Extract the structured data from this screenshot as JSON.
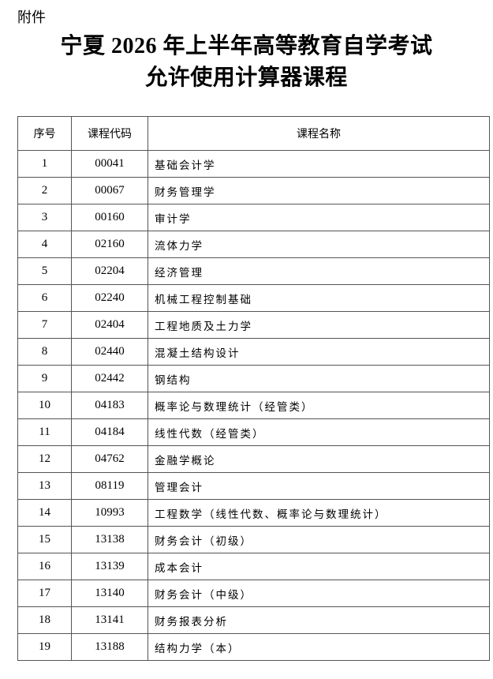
{
  "attachment_label": "附件",
  "title_line1": "宁夏 2026 年上半年高等教育自学考试",
  "title_line2": "允许使用计算器课程",
  "table": {
    "headers": [
      "序号",
      "课程代码",
      "课程名称"
    ],
    "rows": [
      [
        "1",
        "00041",
        "基础会计学"
      ],
      [
        "2",
        "00067",
        "财务管理学"
      ],
      [
        "3",
        "00160",
        "审计学"
      ],
      [
        "4",
        "02160",
        "流体力学"
      ],
      [
        "5",
        "02204",
        "经济管理"
      ],
      [
        "6",
        "02240",
        "机械工程控制基础"
      ],
      [
        "7",
        "02404",
        "工程地质及土力学"
      ],
      [
        "8",
        "02440",
        "混凝土结构设计"
      ],
      [
        "9",
        "02442",
        "钢结构"
      ],
      [
        "10",
        "04183",
        "概率论与数理统计（经管类）"
      ],
      [
        "11",
        "04184",
        "线性代数（经管类）"
      ],
      [
        "12",
        "04762",
        "金融学概论"
      ],
      [
        "13",
        "08119",
        "管理会计"
      ],
      [
        "14",
        "10993",
        "工程数学（线性代数、概率论与数理统计）"
      ],
      [
        "15",
        "13138",
        "财务会计（初级）"
      ],
      [
        "16",
        "13139",
        "成本会计"
      ],
      [
        "17",
        "13140",
        "财务会计（中级）"
      ],
      [
        "18",
        "13141",
        "财务报表分析"
      ],
      [
        "19",
        "13188",
        "结构力学（本）"
      ]
    ]
  }
}
